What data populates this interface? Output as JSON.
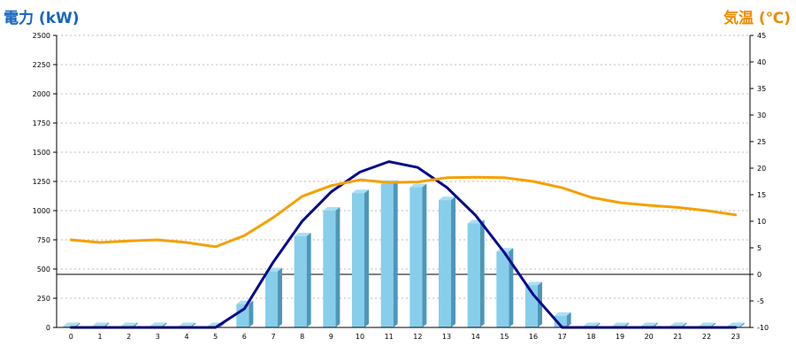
{
  "titles": {
    "left": "電力 (kW)",
    "right": "気温 (℃)"
  },
  "colors": {
    "left_title": "#1565c0",
    "right_title": "#f08a00",
    "bar_front": "#87ceeb",
    "bar_top": "#a9dff2",
    "bar_side": "#4f96b8",
    "power_line": "#0a0a8c",
    "temp_line": "#f5a000",
    "grid": "#bdbdbd",
    "axis": "#000000"
  },
  "chart_data": {
    "type": "bar",
    "categories": [
      "0",
      "1",
      "2",
      "3",
      "4",
      "5",
      "6",
      "7",
      "8",
      "9",
      "10",
      "11",
      "12",
      "13",
      "14",
      "15",
      "16",
      "17",
      "18",
      "19",
      "20",
      "21",
      "22",
      "23"
    ],
    "y_left": {
      "ticks": [
        0,
        250,
        500,
        750,
        1000,
        1250,
        1500,
        1750,
        2000,
        2250,
        2500
      ],
      "range": [
        0,
        2500
      ]
    },
    "y_right": {
      "ticks": [
        -10,
        -5,
        0,
        5,
        10,
        15,
        20,
        25,
        30,
        35,
        40,
        45
      ],
      "range": [
        -10,
        45
      ]
    },
    "grid": true,
    "series": [
      {
        "type": "bar",
        "axis": "left",
        "values": [
          0,
          0,
          0,
          0,
          0,
          0,
          200,
          480,
          780,
          1000,
          1150,
          1230,
          1200,
          1090,
          890,
          650,
          360,
          100,
          0,
          0,
          0,
          0,
          0,
          0
        ]
      },
      {
        "type": "line",
        "axis": "left",
        "values": [
          0,
          0,
          0,
          0,
          0,
          0,
          160,
          560,
          910,
          1160,
          1330,
          1420,
          1370,
          1200,
          960,
          640,
          280,
          0,
          0,
          0,
          0,
          0,
          0,
          0
        ]
      },
      {
        "type": "line",
        "axis": "right",
        "values": [
          6.5,
          6.0,
          6.3,
          6.5,
          6.0,
          5.2,
          7.3,
          10.7,
          14.7,
          16.7,
          17.8,
          17.3,
          17.4,
          18.2,
          18.3,
          18.2,
          17.5,
          16.3,
          14.5,
          13.5,
          13.0,
          12.6,
          12.0,
          11.2
        ]
      }
    ]
  }
}
